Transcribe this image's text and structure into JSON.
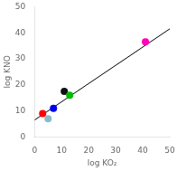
{
  "chart_data": {
    "type": "scatter",
    "xlabel": "log KO₂",
    "ylabel": "log KNO",
    "xlim": [
      0,
      50
    ],
    "ylim": [
      0,
      50
    ],
    "xticks": [
      0,
      10,
      20,
      30,
      40,
      50
    ],
    "yticks": [
      0,
      10,
      20,
      30,
      40,
      50
    ],
    "grid": false,
    "series": [
      {
        "type": "line",
        "color": "#000000",
        "x": [
          0,
          50
        ],
        "values": [
          6.5,
          41.5
        ]
      },
      {
        "type": "scatter",
        "x": [
          3,
          7,
          5,
          11,
          13,
          41
        ],
        "values": [
          9,
          11,
          7,
          17.5,
          16,
          36.5
        ],
        "colors": [
          "#FF0000",
          "#0000EE",
          "#88BBCC",
          "#111111",
          "#00BB00",
          "#FF00BB"
        ]
      }
    ]
  }
}
